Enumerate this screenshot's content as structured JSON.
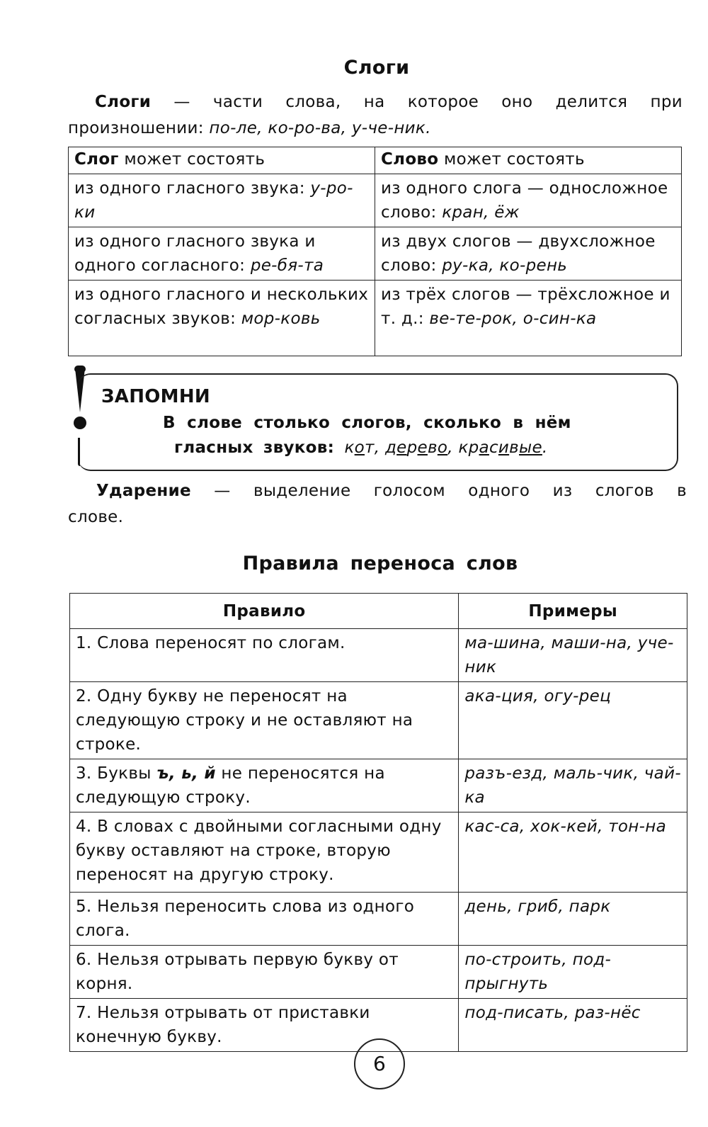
{
  "section1": {
    "title": "Слоги",
    "def_term": "Слоги",
    "def_text": " — части слова, на которое оно делится при",
    "def_text2": "произношении: ",
    "def_examples": "по-ле, ко-ро-ва, у-че-ник."
  },
  "syllable_table": {
    "headers": [
      {
        "bold": "Слог",
        "rest": " может состоять"
      },
      {
        "bold": "Слово",
        "rest": " может состоять"
      }
    ],
    "rows": [
      [
        {
          "text": "из одного гласного звука: ",
          "ex": "у-ро-ки"
        },
        {
          "text": "из одного слога — одно­сложное слово: ",
          "ex": "кран, ёж"
        }
      ],
      [
        {
          "text": "из одного гласного звука и одного согласного: ",
          "ex": "ре-бя-та"
        },
        {
          "text": "из двух слогов — двух­сложное слово: ",
          "ex": "ру-ка, ко-рень"
        }
      ],
      [
        {
          "text": "из одного гласного и нескольких согласных звуков: ",
          "ex": "мор-ковь"
        },
        {
          "text": "из трёх слогов — трёх­сложное и т. д.: ",
          "ex": "ве-те-рок, о-син-ка"
        }
      ]
    ]
  },
  "remember_box": {
    "icon": "exclamation-icon",
    "title": "ЗАПОМНИ",
    "line1": "В слове столько слогов, сколько в нём",
    "line2": "гласных звуков: ",
    "examples": [
      [
        [
          "к",
          0
        ],
        [
          "о",
          1
        ],
        [
          "т",
          0
        ]
      ],
      [
        [
          "д",
          0
        ],
        [
          "е",
          1
        ],
        [
          "р",
          0
        ],
        [
          "е",
          1
        ],
        [
          "в",
          0
        ],
        [
          "о",
          1
        ]
      ],
      [
        [
          "кр",
          0
        ],
        [
          "а",
          1
        ],
        [
          "с",
          0
        ],
        [
          "и",
          1
        ],
        [
          "в",
          0
        ],
        [
          "ы",
          1
        ],
        [
          "е",
          1
        ]
      ]
    ],
    "end": "."
  },
  "stress": {
    "term": "Ударение",
    "text": " — выделение голосом одного из слогов в",
    "text2": "слове."
  },
  "section2": {
    "title": "Правила переноса слов"
  },
  "hyphen_table": {
    "headers": [
      "Правило",
      "Примеры"
    ],
    "rows": [
      {
        "rule": "1. Слова переносят по слогам.",
        "examples": "ма-шина, маши-на, уче-ник"
      },
      {
        "rule": "2. Одну букву не переносят на следующую строку и не оставляют на строке.",
        "examples": "ака-ция, огу-рец"
      },
      {
        "rule_pre": "3. Буквы ",
        "rule_bold": "ъ, ь, й",
        "rule_post": " не переносятся на следующую строку.",
        "examples": "разъ-езд, маль-чик, чай-ка"
      },
      {
        "rule": "4. В словах с двойными согласными одну букву оставляют на строке, вторую переносят на другую строку.",
        "examples": "кас-са, хок-кей, тон-на"
      },
      {
        "rule": "5. Нельзя переносить слова из одного слога.",
        "examples": "день, гриб, парк"
      },
      {
        "rule": "6. Нельзя отрывать первую букву от корня.",
        "examples": "по-строить, под-прыгнуть"
      },
      {
        "rule": "7. Нельзя отрывать от приставки конечную букву.",
        "examples": "под-писать, раз-нёс"
      }
    ]
  },
  "page_number": "6"
}
